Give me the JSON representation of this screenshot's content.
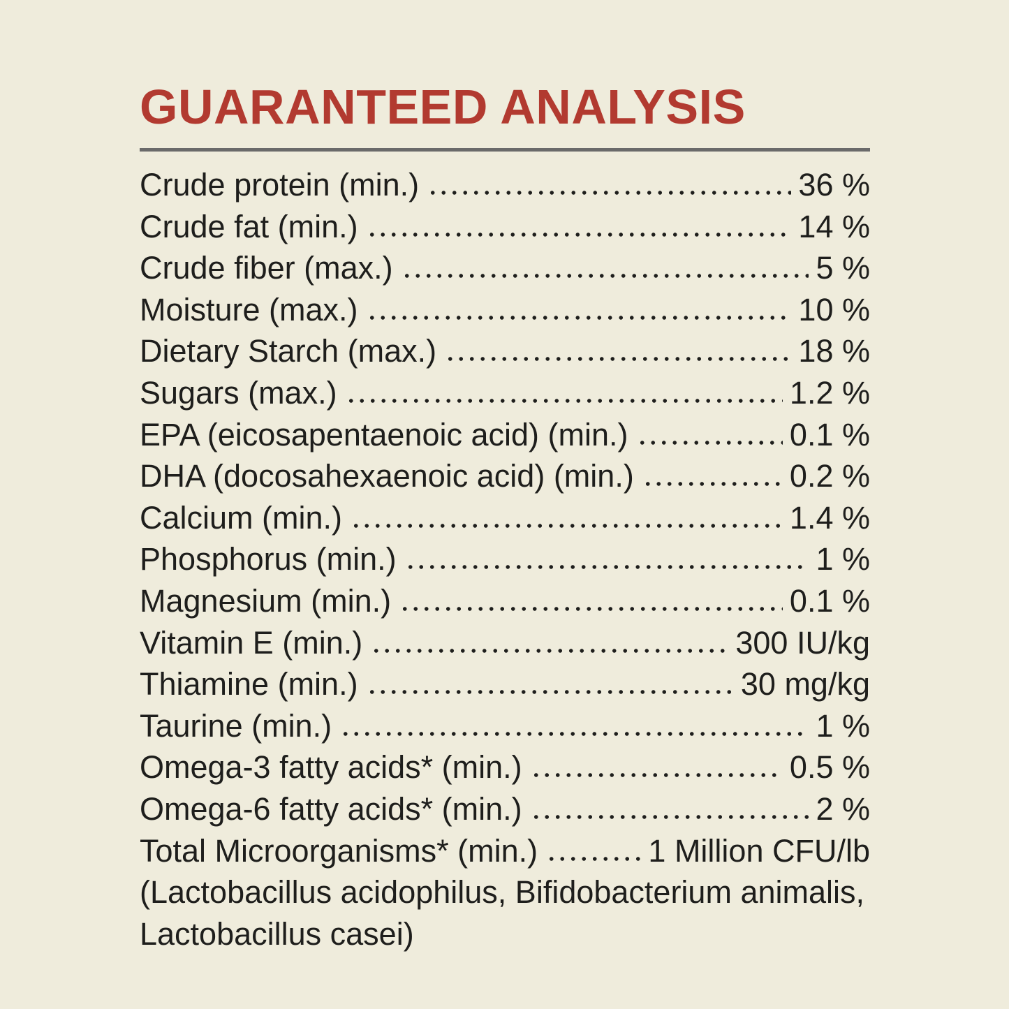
{
  "page": {
    "background_color": "#efecdc",
    "text_color": "#1e1e1c"
  },
  "header": {
    "title": "GUARANTEED ANALYSIS",
    "title_color": "#b23a30",
    "rule_color": "#6a6a6a"
  },
  "table": {
    "rows": [
      {
        "label": "Crude protein (min.)",
        "value": "36 %"
      },
      {
        "label": "Crude fat (min.)",
        "value": "14 %"
      },
      {
        "label": "Crude fiber (max.)",
        "value": "5 %"
      },
      {
        "label": "Moisture (max.)",
        "value": "10 %"
      },
      {
        "label": "Dietary Starch (max.)",
        "value": "18 %"
      },
      {
        "label": "Sugars (max.)",
        "value": "1.2 %"
      },
      {
        "label": "EPA (eicosapentaenoic acid) (min.)",
        "value": "0.1 %"
      },
      {
        "label": "DHA (docosahexaenoic acid) (min.)",
        "value": "0.2 %"
      },
      {
        "label": "Calcium (min.)",
        "value": "1.4 %"
      },
      {
        "label": "Phosphorus (min.)",
        "value": "1 %"
      },
      {
        "label": "Magnesium (min.)",
        "value": "0.1 %"
      },
      {
        "label": "Vitamin E (min.)",
        "value": "300 IU/kg"
      },
      {
        "label": "Thiamine (min.)",
        "value": "30 mg/kg"
      },
      {
        "label": "Taurine (min.)",
        "value": "1 %"
      },
      {
        "label": "Omega-3 fatty acids* (min.)",
        "value": "0.5 %"
      },
      {
        "label": "Omega-6 fatty acids* (min.)",
        "value": "2 %"
      },
      {
        "label": "Total Microorganisms* (min.)",
        "value": "1 Million CFU/lb"
      }
    ],
    "footnote_lines": [
      "(Lactobacillus acidophilus, Bifidobacterium animalis,",
      "Lactobacillus casei)"
    ]
  }
}
